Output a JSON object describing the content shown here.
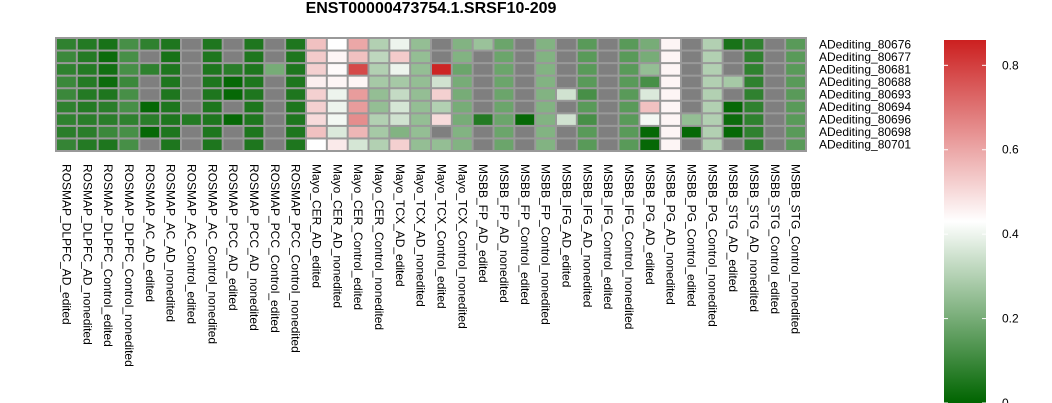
{
  "chart_data": {
    "type": "heatmap",
    "title": "ENST00000473754.1.SRSF10-209",
    "rows": [
      "ADediting_80676",
      "ADediting_80677",
      "ADediting_80681",
      "ADediting_80688",
      "ADediting_80693",
      "ADediting_80694",
      "ADediting_80696",
      "ADediting_80698",
      "ADediting_80701"
    ],
    "columns": [
      "ROSMAP_DLPFC_AD_edited",
      "ROSMAP_DLPFC_AD_nonedited",
      "ROSMAP_DLPFC_Control_edited",
      "ROSMAP_DLPFC_Control_nonedited",
      "ROSMAP_AC_AD_edited",
      "ROSMAP_AC_AD_nonedited",
      "ROSMAP_AC_Control_edited",
      "ROSMAP_AC_Control_nonedited",
      "ROSMAP_PCC_AD_edited",
      "ROSMAP_PCC_AD_nonedited",
      "ROSMAP_PCC_Control_edited",
      "ROSMAP_PCC_Control_nonedited",
      "Mayo_CER_AD_edited",
      "Mayo_CER_AD_nonedited",
      "Mayo_CER_Control_edited",
      "Mayo_CER_Control_nonedited",
      "Mayo_TCX_AD_edited",
      "Mayo_TCX_AD_nonedited",
      "Mayo_TCX_Control_edited",
      "Mayo_TCX_Control_nonedited",
      "MSBB_FP_AD_edited",
      "MSBB_FP_AD_nonedited",
      "MSBB_FP_Control_edited",
      "MSBB_FP_Control_nonedited",
      "MSBB_IFG_AD_edited",
      "MSBB_IFG_AD_nonedited",
      "MSBB_IFG_Control_edited",
      "MSBB_IFG_Control_nonedited",
      "MSBB_PG_AD_edited",
      "MSBB_PG_AD_nonedited",
      "MSBB_PG_Control_edited",
      "MSBB_PG_Control_nonedited",
      "MSBB_STG_AD_edited",
      "MSBB_STG_AD_nonedited",
      "MSBB_STG_Control_edited",
      "MSBB_STG_Control_nonedited"
    ],
    "values": [
      [
        0.08,
        0.06,
        0.04,
        0.12,
        0.08,
        0.05,
        null,
        0.05,
        null,
        0.05,
        null,
        0.05,
        0.55,
        0.43,
        0.6,
        0.3,
        0.4,
        0.25,
        null,
        0.22,
        0.26,
        0.18,
        null,
        0.22,
        null,
        0.15,
        null,
        0.15,
        0.2,
        0.45,
        null,
        0.3,
        0.04,
        0.08,
        null,
        0.15
      ],
      [
        0.1,
        0.06,
        0.02,
        0.12,
        null,
        0.04,
        null,
        0.05,
        null,
        0.05,
        null,
        0.05,
        0.53,
        0.45,
        0.55,
        0.32,
        0.53,
        0.25,
        null,
        0.22,
        null,
        0.18,
        null,
        0.22,
        null,
        0.15,
        null,
        0.15,
        0.2,
        0.45,
        null,
        0.3,
        null,
        0.08,
        null,
        0.15
      ],
      [
        0.08,
        0.06,
        0.03,
        0.12,
        0.08,
        0.05,
        null,
        0.05,
        0.07,
        0.05,
        0.2,
        0.05,
        0.52,
        0.44,
        0.78,
        0.3,
        0.4,
        0.25,
        0.85,
        0.18,
        null,
        0.18,
        null,
        0.22,
        null,
        0.15,
        null,
        0.15,
        0.25,
        0.45,
        null,
        0.3,
        null,
        0.08,
        null,
        0.15
      ],
      [
        0.1,
        0.06,
        0.02,
        0.1,
        null,
        0.05,
        null,
        0.05,
        0.01,
        0.05,
        null,
        0.05,
        0.46,
        0.45,
        0.45,
        0.28,
        0.28,
        0.25,
        0.35,
        0.2,
        null,
        0.18,
        null,
        0.22,
        null,
        0.15,
        null,
        0.15,
        0.12,
        0.45,
        null,
        0.3,
        0.28,
        0.08,
        null,
        0.15
      ],
      [
        0.1,
        0.06,
        0.05,
        0.12,
        null,
        0.05,
        null,
        0.05,
        0.01,
        0.05,
        null,
        0.05,
        0.52,
        0.4,
        0.62,
        0.25,
        0.33,
        0.25,
        0.52,
        0.2,
        null,
        0.18,
        null,
        0.22,
        0.35,
        0.12,
        null,
        0.15,
        0.37,
        0.45,
        null,
        0.3,
        null,
        0.08,
        null,
        0.15
      ],
      [
        0.08,
        0.06,
        0.07,
        0.12,
        0.01,
        0.05,
        null,
        0.05,
        null,
        0.05,
        null,
        0.05,
        0.52,
        0.4,
        0.62,
        0.25,
        0.36,
        0.25,
        0.3,
        0.2,
        null,
        0.18,
        null,
        0.22,
        null,
        0.15,
        null,
        0.15,
        0.55,
        0.45,
        null,
        0.3,
        0.01,
        0.08,
        null,
        0.15
      ],
      [
        0.08,
        0.07,
        0.07,
        0.08,
        0.07,
        0.05,
        0.06,
        0.05,
        0.01,
        0.05,
        null,
        0.05,
        0.5,
        0.41,
        0.65,
        0.3,
        0.35,
        0.25,
        0.5,
        0.2,
        0.06,
        0.18,
        0.01,
        0.22,
        0.35,
        0.12,
        null,
        0.15,
        0.41,
        0.45,
        0.25,
        0.3,
        0.02,
        0.08,
        null,
        0.15
      ],
      [
        0.07,
        0.07,
        0.1,
        0.12,
        0.01,
        0.05,
        null,
        0.05,
        null,
        0.05,
        null,
        0.05,
        0.55,
        0.37,
        0.57,
        0.28,
        0.22,
        0.25,
        null,
        0.22,
        null,
        0.18,
        null,
        0.22,
        null,
        0.15,
        null,
        0.15,
        0.01,
        0.45,
        0.01,
        0.3,
        0.01,
        0.08,
        null,
        0.15
      ],
      [
        0.09,
        0.06,
        0.05,
        0.12,
        null,
        0.05,
        null,
        0.05,
        null,
        0.05,
        null,
        0.05,
        0.43,
        0.47,
        0.36,
        0.3,
        0.52,
        0.25,
        0.25,
        0.22,
        null,
        0.18,
        null,
        0.22,
        null,
        0.15,
        null,
        0.15,
        0.01,
        0.45,
        null,
        0.3,
        null,
        0.08,
        null,
        0.15
      ]
    ],
    "na_color": "#7f7f7f",
    "color_scale": {
      "low": "#006400",
      "mid": "#ffffff",
      "high": "#cc2020",
      "min": 0,
      "mid_value": 0.43,
      "max": 0.86
    },
    "legend": {
      "ticks": [
        0.8,
        0.6,
        0.4,
        0.2,
        0
      ],
      "tick_labels": [
        "0.8",
        "0.6",
        "0.4",
        "0.2",
        "0"
      ],
      "position": "right"
    }
  }
}
